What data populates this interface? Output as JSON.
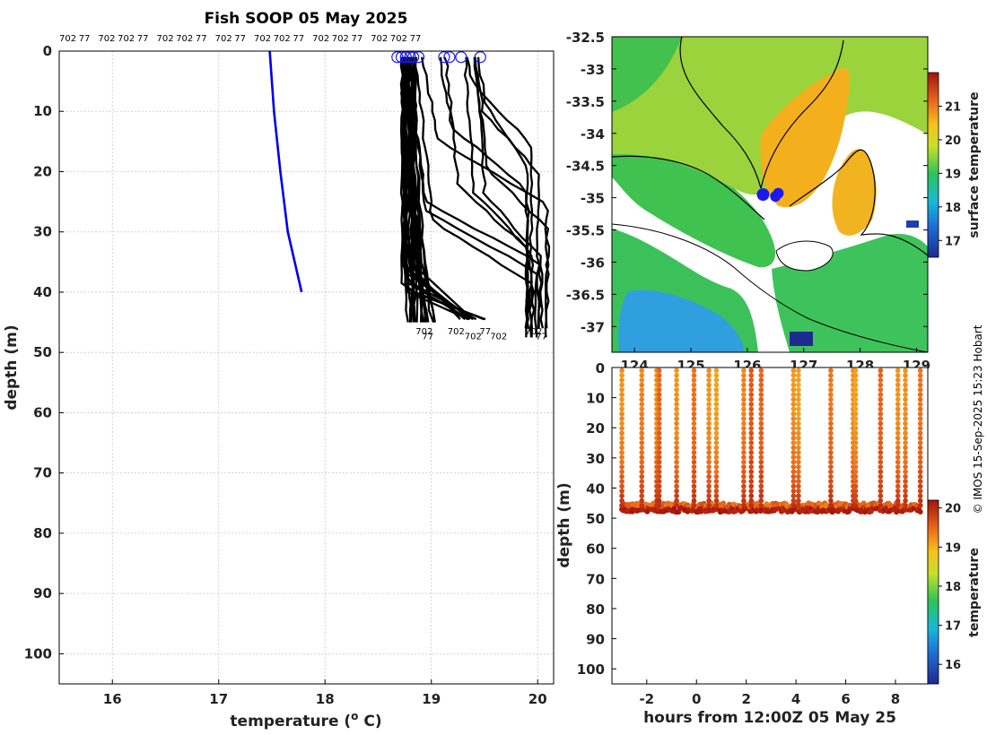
{
  "title": "Fish SOOP 05 May 2025",
  "credit": "© IMOS 15-Sep-2025 15:23 Hobart",
  "chart_data": [
    {
      "type": "line",
      "panel": "temperature profiles",
      "xlabel": "temperature (o C)",
      "ylabel": "depth (m)",
      "xlim": [
        15.5,
        20.15
      ],
      "ylim": [
        105,
        0
      ],
      "xticks": [
        16,
        17,
        18,
        19,
        20
      ],
      "yticks": [
        0,
        10,
        20,
        30,
        40,
        50,
        60,
        70,
        80,
        90,
        100
      ],
      "grid": true,
      "top_labels": [
        "702",
        "77",
        "702",
        "702",
        "77",
        "702",
        "702",
        "77",
        "702",
        "77",
        "702",
        "702",
        "77",
        "702",
        "702",
        "77",
        "702",
        "702",
        "77"
      ],
      "climatology": {
        "color": "#0000ee",
        "points": [
          [
            17.48,
            0
          ],
          [
            17.52,
            10
          ],
          [
            17.58,
            20
          ],
          [
            17.65,
            30
          ],
          [
            17.78,
            40
          ]
        ]
      },
      "profile_color": "#000000",
      "surface_markers": [
        18.68,
        18.72,
        18.76,
        18.8,
        18.83,
        18.88,
        19.12,
        19.17,
        19.28,
        19.46
      ],
      "bottom_depths": [
        45,
        48
      ],
      "profile_groups": [
        {
          "count": 18,
          "surface": [
            18.72,
            18.85
          ],
          "bottom": [
            18.78,
            19.05
          ],
          "bottom_depth": [
            45,
            47
          ]
        },
        {
          "count": 10,
          "surface": [
            18.72,
            18.85
          ],
          "thermocline": [
            35,
            40
          ],
          "bottom": [
            19.3,
            19.6
          ],
          "bottom_depth": [
            45,
            46
          ]
        },
        {
          "count": 12,
          "surface": [
            18.75,
            19.5
          ],
          "mixed": [
            19.9,
            20.1
          ],
          "bottom_depth": [
            46,
            48
          ]
        }
      ]
    },
    {
      "type": "heatmap",
      "panel": "surface temperature map",
      "xlim": [
        123.6,
        129.2
      ],
      "ylim": [
        -37.4,
        -32.5
      ],
      "yticks": [
        -32.5,
        -33,
        -33.5,
        -34,
        -34.5,
        -35,
        -35.5,
        -36,
        -36.5,
        -37
      ],
      "xticks": [
        124,
        125,
        126,
        127,
        128,
        129
      ],
      "colorbar_label": "surface temperature",
      "colorbar_range": [
        16.5,
        22
      ],
      "colorbar_ticks": [
        17,
        18,
        19,
        20,
        21
      ],
      "vessel_positions": [
        [
          126.28,
          -34.95
        ],
        [
          126.5,
          -34.98
        ],
        [
          126.55,
          -34.93
        ]
      ]
    },
    {
      "type": "scatter",
      "panel": "depth-time section",
      "xlabel": "hours from 12:00Z 05 May 25",
      "ylabel": "depth (m)",
      "xlim": [
        -3.4,
        9.3
      ],
      "ylim": [
        105,
        0
      ],
      "xticks": [
        -2,
        0,
        2,
        4,
        6,
        8
      ],
      "yticks": [
        0,
        10,
        20,
        30,
        40,
        50,
        60,
        70,
        80,
        90,
        100
      ],
      "colorbar_label": "temperature",
      "colorbar_range": [
        15.5,
        20.2
      ],
      "colorbar_ticks": [
        16,
        17,
        18,
        19,
        20
      ],
      "casts": [
        {
          "t": -3.0,
          "surface_temp": 19.2
        },
        {
          "t": -2.2,
          "surface_temp": 19.3
        },
        {
          "t": -1.6,
          "surface_temp": 19.2
        },
        {
          "t": -1.5,
          "surface_temp": 19.5
        },
        {
          "t": -0.8,
          "surface_temp": 19.2
        },
        {
          "t": -0.1,
          "surface_temp": 19.4
        },
        {
          "t": 0.5,
          "surface_temp": 19.2
        },
        {
          "t": 0.8,
          "surface_temp": 19.1
        },
        {
          "t": 1.9,
          "surface_temp": 19.3
        },
        {
          "t": 2.2,
          "surface_temp": 19.6
        },
        {
          "t": 2.6,
          "surface_temp": 19.5
        },
        {
          "t": 3.9,
          "surface_temp": 19.2
        },
        {
          "t": 4.1,
          "surface_temp": 19.1
        },
        {
          "t": 5.4,
          "surface_temp": 19.4
        },
        {
          "t": 6.3,
          "surface_temp": 19.2
        },
        {
          "t": 6.4,
          "surface_temp": 19.1
        },
        {
          "t": 7.4,
          "surface_temp": 19.5
        },
        {
          "t": 8.1,
          "surface_temp": 19.2
        },
        {
          "t": 8.4,
          "surface_temp": 19.2
        },
        {
          "t": 9.0,
          "surface_temp": 19.4
        }
      ],
      "bottom_temp": 20.0,
      "bottom_depth": [
        45,
        48
      ]
    }
  ]
}
